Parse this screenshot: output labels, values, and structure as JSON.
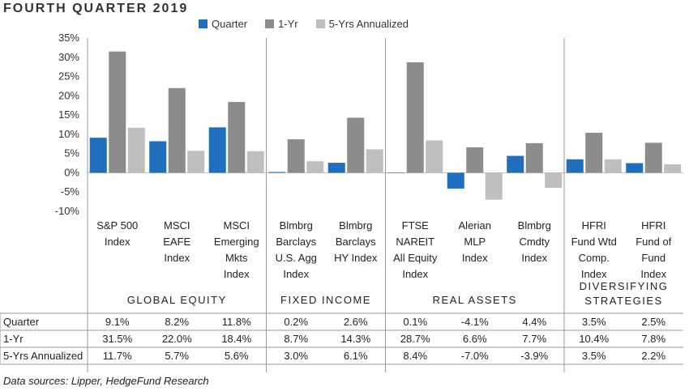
{
  "title": "FOURTH QUARTER 2019",
  "source": "Data sources: Lipper, HedgeFund Research",
  "colors": {
    "Quarter": "#1f6fbe",
    "1-Yr": "#8c8c8c",
    "5-Yrs Annualized": "#bfbfbf"
  },
  "chart_data": {
    "type": "bar",
    "title": "FOURTH QUARTER 2019",
    "ylim": [
      -10,
      35
    ],
    "yticks": [
      -10,
      -5,
      0,
      5,
      10,
      15,
      20,
      25,
      30,
      35
    ],
    "ytick_labels": [
      "-10%",
      "-5%",
      "0%",
      "5%",
      "10%",
      "15%",
      "20%",
      "25%",
      "30%",
      "35%"
    ],
    "legend_position": "top",
    "categories": [
      [
        "S&P 500",
        "Index"
      ],
      [
        "MSCI",
        "EAFE",
        "Index"
      ],
      [
        "MSCI",
        "Emerging",
        "Mkts",
        "Index"
      ],
      [
        "Blmbrg",
        "Barclays",
        "U.S. Agg",
        "Index"
      ],
      [
        "Blmbrg",
        "Barclays",
        "HY Index"
      ],
      [
        "FTSE",
        "NAREIT",
        "All Equity",
        "Index"
      ],
      [
        "Alerian",
        "MLP",
        "Index"
      ],
      [
        "Blmbrg",
        "Cmdty",
        "Index"
      ],
      [
        "HFRI",
        "Fund Wtd",
        "Comp.",
        "Index"
      ],
      [
        "HFRI",
        "Fund of",
        "Fund",
        "Index"
      ]
    ],
    "groups": [
      {
        "label": [
          "GLOBAL EQUITY"
        ],
        "count": 3
      },
      {
        "label": [
          "FIXED INCOME"
        ],
        "count": 2
      },
      {
        "label": [
          "REAL ASSETS"
        ],
        "count": 3
      },
      {
        "label": [
          "DIVERSIFYING",
          "STRATEGIES"
        ],
        "count": 2
      }
    ],
    "series": [
      {
        "name": "Quarter",
        "values": [
          9.1,
          8.2,
          11.8,
          0.2,
          2.6,
          0.1,
          -4.1,
          4.4,
          3.5,
          2.5
        ],
        "labels": [
          "9.1%",
          "8.2%",
          "11.8%",
          "0.2%",
          "2.6%",
          "0.1%",
          "-4.1%",
          "4.4%",
          "3.5%",
          "2.5%"
        ]
      },
      {
        "name": "1-Yr",
        "values": [
          31.5,
          22.0,
          18.4,
          8.7,
          14.3,
          28.7,
          6.6,
          7.7,
          10.4,
          7.8
        ],
        "labels": [
          "31.5%",
          "22.0%",
          "18.4%",
          "8.7%",
          "14.3%",
          "28.7%",
          "6.6%",
          "7.7%",
          "10.4%",
          "7.8%"
        ]
      },
      {
        "name": "5-Yrs Annualized",
        "values": [
          11.7,
          5.7,
          5.6,
          3.0,
          6.1,
          8.4,
          -7.0,
          -3.9,
          3.5,
          2.2
        ],
        "labels": [
          "11.7%",
          "5.7%",
          "5.6%",
          "3.0%",
          "6.1%",
          "8.4%",
          "-7.0%",
          "-3.9%",
          "3.5%",
          "2.2%"
        ]
      }
    ]
  }
}
